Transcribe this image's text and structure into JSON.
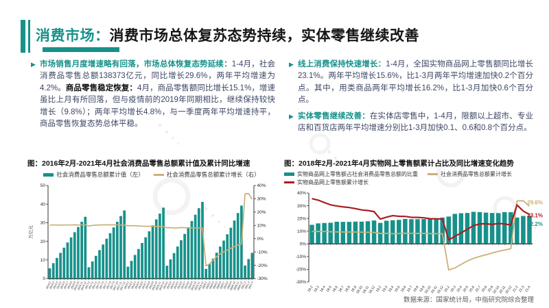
{
  "header": {
    "title_prefix": "消费市场：",
    "title_main": "消费市场总体复苏态势持续，实体零售继续改善"
  },
  "colors": {
    "teal": "#17918A",
    "gold": "#C9B077",
    "red": "#A91D22"
  },
  "bullets": {
    "left": [
      {
        "segments": [
          {
            "t": "市场销售月度增速略有回落，市场总体恢复态势延续：",
            "s": "lead"
          },
          {
            "t": "1-4月，社会消费品零售总额138373亿元，同比增长29.6%，两年平均增速为4.2%。",
            "s": "normal"
          },
          {
            "t": "商品零售稳定恢复：",
            "s": "bold"
          },
          {
            "t": "4月，商品零售额同比增长15.1%，增速虽比上月有所回落，但与疫情前的2019年同期相比，继续保持较快增长（9.8%）；两年平均增长4.8%，与一季度两年平均增速持平，商品零售恢复态势总体平稳。",
            "s": "normal"
          }
        ]
      }
    ],
    "right": [
      {
        "segments": [
          {
            "t": "线上消费保持快速增长：",
            "s": "lead"
          },
          {
            "t": "1-4月，全国实物商品网上零售额同比增长23.1%。两年平均增长15.6%，比1-3月两年平均增速加快0.2个百分点。其中，用类商品两年平均增长16.2%，比1-3月加快0.6个百分点。",
            "s": "normal"
          }
        ]
      },
      {
        "segments": [
          {
            "t": "实体零售继续改善：",
            "s": "lead"
          },
          {
            "t": "在实体店零售中，1-4月，限额以上超市、专业店和百货店两年平均增速分别比1-3月加快0.1、0.6和0.8个百分点。",
            "s": "normal"
          }
        ]
      }
    ]
  },
  "chart_data": [
    {
      "type": "bar",
      "title": "图：2016年2月-2021年4月社会消费品零售总额累计值及累计同比增速",
      "ylabel_left": "万亿元",
      "left_axis": {
        "min": 0,
        "max": 50,
        "ticks": [
          50,
          40,
          30,
          20,
          10,
          0
        ],
        "unit": ""
      },
      "right_axis": {
        "min": -30,
        "max": 40,
        "ticks": [
          40,
          30,
          20,
          10,
          0,
          -10,
          -20,
          -30
        ],
        "unit": "%"
      },
      "categories": [
        "2016.2",
        "2016.3",
        "2016.4",
        "2016.5",
        "2016.6",
        "2016.7",
        "2016.8",
        "2016.9",
        "2016.10",
        "2016.11",
        "2016.12",
        "2017.2",
        "2017.3",
        "2017.4",
        "2017.5",
        "2017.6",
        "2017.7",
        "2017.8",
        "2017.9",
        "2017.10",
        "2017.11",
        "2017.12",
        "2018.2",
        "2018.3",
        "2018.4",
        "2018.5",
        "2018.6",
        "2018.7",
        "2018.8",
        "2018.9",
        "2018.10",
        "2018.11",
        "2018.12",
        "2019.2",
        "2019.3",
        "2019.4",
        "2019.5",
        "2019.6",
        "2019.7",
        "2019.8",
        "2019.9",
        "2019.10",
        "2019.11",
        "2019.12",
        "2020.2",
        "2020.3",
        "2020.4",
        "2020.5",
        "2020.6",
        "2020.7",
        "2020.8",
        "2020.9",
        "2020.10",
        "2020.11",
        "2020.12",
        "2021.2",
        "2021.3",
        "2021.4"
      ],
      "series": [
        {
          "name": "社会消费品零售总额累计值（左）",
          "type": "bar",
          "axis": "left",
          "color": "#17918A",
          "values": [
            5.5,
            8.3,
            11.1,
            13.8,
            16.6,
            19.4,
            22.1,
            24.9,
            27.7,
            30.5,
            33.2,
            6.1,
            9.2,
            12.2,
            15.3,
            18.3,
            21.4,
            24.4,
            27.5,
            30.5,
            33.6,
            36.6,
            6.4,
            9.5,
            12.7,
            15.9,
            19.1,
            22.2,
            25.4,
            28.6,
            31.8,
            34.9,
            38.1,
            6.9,
            10.3,
            13.7,
            17.2,
            20.6,
            24.0,
            27.5,
            30.9,
            34.3,
            37.8,
            41.2,
            5.2,
            7.9,
            10.7,
            13.9,
            17.2,
            20.4,
            23.8,
            27.3,
            31.2,
            35.2,
            39.2,
            7.0,
            10.5,
            13.8
          ]
        },
        {
          "name": "社会消费品零售总额累计增长（右）",
          "type": "line",
          "axis": "right",
          "color": "#C9B077",
          "line_width": 1.7,
          "values": [
            10.2,
            10.3,
            10.3,
            10.2,
            10.3,
            10.3,
            10.3,
            10.4,
            10.3,
            10.4,
            10.4,
            9.5,
            10.0,
            10.2,
            10.3,
            10.4,
            10.4,
            10.4,
            10.4,
            10.3,
            10.3,
            10.2,
            9.7,
            9.8,
            9.7,
            9.5,
            9.4,
            9.3,
            9.3,
            9.3,
            9.2,
            9.1,
            9.0,
            8.2,
            8.3,
            8.0,
            8.1,
            8.4,
            8.3,
            8.2,
            8.2,
            8.1,
            8.0,
            8.0,
            -20.5,
            -19.0,
            -16.2,
            -13.5,
            -11.4,
            -9.9,
            -8.6,
            -7.2,
            -5.9,
            -4.8,
            -3.9,
            33.8,
            33.9,
            29.6
          ]
        }
      ]
    },
    {
      "type": "bar",
      "title": "图：2018年2月-2021年4月实物网上零售额累计占比及同比增速变化趋势",
      "left_axis": {
        "min": -30,
        "max": 40,
        "ticks": [
          40,
          30,
          20,
          10,
          0,
          -10,
          -20,
          -30
        ],
        "unit": "%"
      },
      "categories": [
        "18.2",
        "18.3",
        "18.4",
        "18.5",
        "18.6",
        "18.7",
        "18.8",
        "18.9",
        "18.10",
        "18.11",
        "18.12",
        "19.2",
        "19.3",
        "19.4",
        "19.5",
        "19.6",
        "19.7",
        "19.8",
        "19.9",
        "19.10",
        "19.11",
        "19.12",
        "20.2",
        "20.3",
        "20.4",
        "20.5",
        "20.6",
        "20.7",
        "20.8",
        "20.9",
        "20.10",
        "20.11",
        "20.12",
        "21.2",
        "21.3",
        "21.4"
      ],
      "series": [
        {
          "name": "实物商品网上零售额占社会消费品零售总额的比重",
          "type": "bar",
          "axis": "left",
          "color": "#17918A",
          "values": [
            15.0,
            16.1,
            16.4,
            16.6,
            17.4,
            17.3,
            17.3,
            17.5,
            17.5,
            17.8,
            18.4,
            16.5,
            18.2,
            18.6,
            18.9,
            19.6,
            19.4,
            19.4,
            19.5,
            19.5,
            20.2,
            20.7,
            21.5,
            23.6,
            24.1,
            24.3,
            25.2,
            25.0,
            24.6,
            24.3,
            24.2,
            25.0,
            24.9,
            20.7,
            21.9,
            22.2
          ]
        },
        {
          "name": "社会消费品零售总额累计增长",
          "type": "line",
          "axis": "left",
          "color": "#C9B077",
          "line_width": 1.8,
          "values": [
            9.7,
            9.8,
            9.7,
            9.5,
            9.4,
            9.3,
            9.3,
            9.3,
            9.2,
            9.1,
            9.0,
            8.2,
            8.3,
            8.0,
            8.1,
            8.4,
            8.3,
            8.2,
            8.2,
            8.1,
            8.0,
            8.0,
            -20.5,
            -19.0,
            -16.2,
            -13.5,
            -11.4,
            -9.9,
            -8.6,
            -7.2,
            -5.9,
            -4.8,
            -3.9,
            33.8,
            33.9,
            29.6
          ]
        },
        {
          "name": "实物商品网上零售额累计增长",
          "type": "line",
          "axis": "left",
          "color": "#A91D22",
          "line_width": 2.2,
          "values": [
            35.6,
            34.4,
            32.5,
            30.7,
            29.8,
            29.1,
            28.6,
            27.7,
            26.7,
            26.2,
            25.4,
            19.5,
            21.0,
            22.2,
            21.7,
            21.6,
            20.9,
            20.8,
            20.5,
            19.8,
            19.7,
            19.5,
            3.0,
            5.9,
            8.6,
            11.5,
            14.3,
            15.7,
            15.8,
            15.3,
            16.0,
            15.7,
            14.8,
            30.6,
            25.8,
            23.1
          ]
        }
      ],
      "annotations": [
        {
          "text": "29.6%",
          "color": "#C9B077"
        },
        {
          "text": "23.1%",
          "color": "#A91D22"
        },
        {
          "text": "22.2%",
          "color": "#17918A"
        }
      ]
    }
  ],
  "source": "数据来源：国家统计局，中指研究院综合整理"
}
